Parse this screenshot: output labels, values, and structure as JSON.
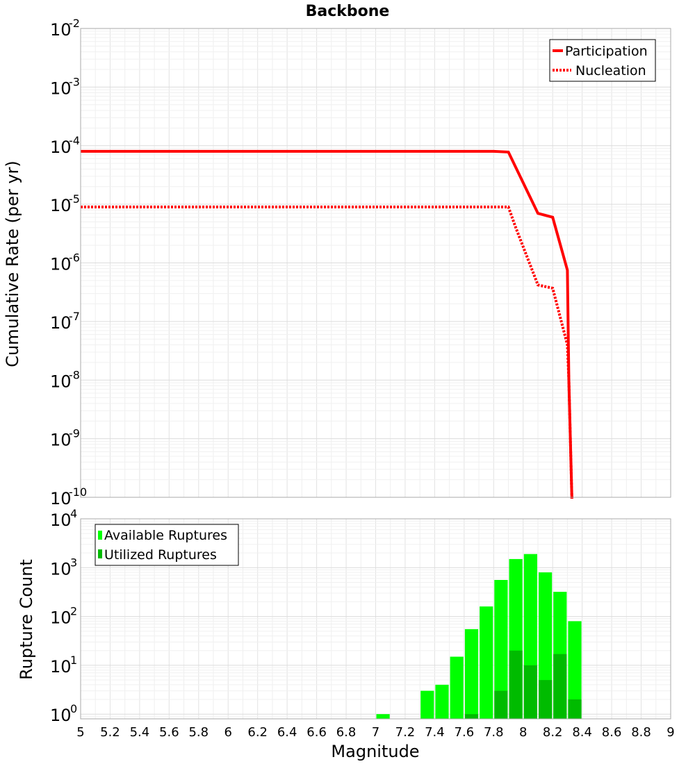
{
  "chart_data": [
    {
      "type": "line",
      "title": "Backbone",
      "xlabel": "",
      "ylabel": "Cumulative Rate (per yr)",
      "xlim": [
        5,
        9
      ],
      "ylim_log10": [
        -10,
        -2
      ],
      "ytick_base": "10",
      "yticks_exp": [
        "-2",
        "-3",
        "-4",
        "-5",
        "-6",
        "-7",
        "-8",
        "-9",
        "-10"
      ],
      "grid": true,
      "legend_position": "top-right",
      "series": [
        {
          "name": "Participation",
          "style": "solid",
          "color": "#ff0000",
          "points": [
            [
              5.0,
              8e-05
            ],
            [
              7.8,
              8e-05
            ],
            [
              7.9,
              7.8e-05
            ],
            [
              8.1,
              7e-06
            ],
            [
              8.2,
              6e-06
            ],
            [
              8.3,
              7.5e-07
            ],
            [
              8.31,
              1e-08
            ],
            [
              8.33,
              1e-10
            ],
            [
              8.34,
              1e-10
            ]
          ]
        },
        {
          "name": "Nucleation",
          "style": "dotted",
          "color": "#ff0000",
          "points": [
            [
              5.0,
              9e-06
            ],
            [
              7.9,
              9e-06
            ],
            [
              7.95,
              4e-06
            ],
            [
              8.1,
              4.2e-07
            ],
            [
              8.2,
              3.7e-07
            ],
            [
              8.3,
              4e-08
            ],
            [
              8.31,
              1e-08
            ],
            [
              8.33,
              1e-10
            ],
            [
              8.34,
              1e-10
            ]
          ]
        }
      ]
    },
    {
      "type": "bar",
      "title": "",
      "xlabel": "Magnitude",
      "ylabel": "Rupture Count",
      "xlim": [
        5,
        9
      ],
      "ylim": [
        0.8,
        10000
      ],
      "ytick_base": "10",
      "yticks_exp": [
        "0",
        "1",
        "2",
        "3",
        "4"
      ],
      "xticks": [
        "5",
        "5.2",
        "5.4",
        "5.6",
        "5.8",
        "6",
        "6.2",
        "6.4",
        "6.6",
        "6.8",
        "7",
        "7.2",
        "7.4",
        "7.6",
        "7.8",
        "8",
        "8.2",
        "8.4",
        "8.6",
        "8.8",
        "9"
      ],
      "grid": true,
      "legend_position": "top-left",
      "bin_width": 0.1,
      "categories": [
        7.05,
        7.35,
        7.45,
        7.55,
        7.65,
        7.75,
        7.85,
        7.95,
        8.05,
        8.15,
        8.25,
        8.35
      ],
      "series": [
        {
          "name": "Available Ruptures",
          "color": "#00ff00",
          "values": [
            1,
            3,
            4,
            15,
            55,
            160,
            560,
            1500,
            1900,
            800,
            320,
            80
          ]
        },
        {
          "name": "Utilized Ruptures",
          "color": "#00bb00",
          "values": [
            0,
            0,
            0,
            0,
            1,
            0,
            3,
            20,
            10,
            5,
            17,
            2
          ]
        }
      ]
    }
  ]
}
